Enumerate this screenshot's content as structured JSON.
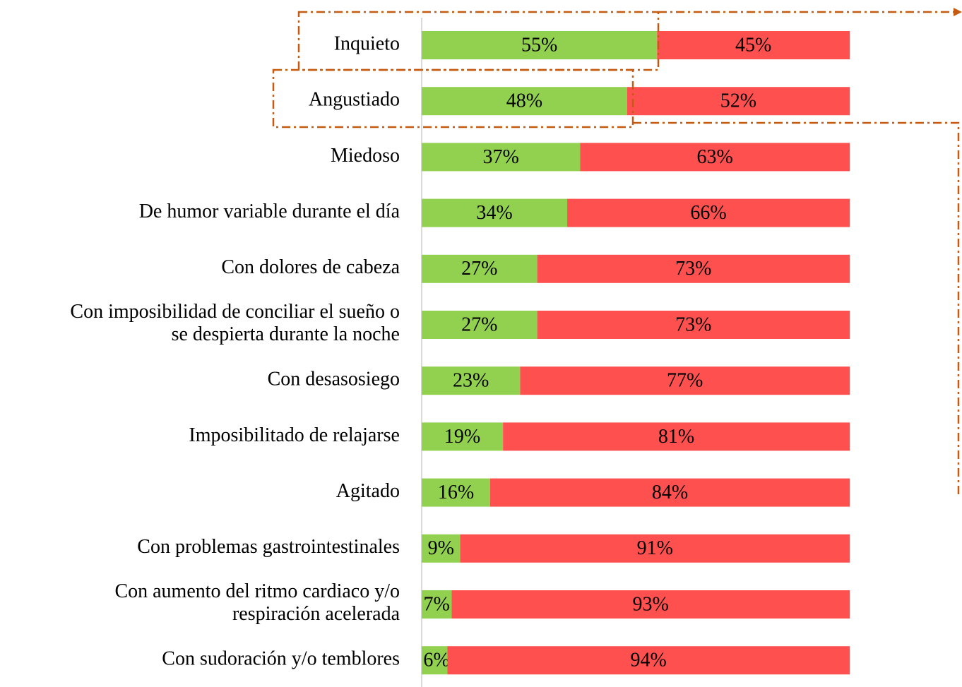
{
  "chart_data": {
    "type": "stacked-bar-horizontal",
    "categories": [
      "Inquieto",
      "Angustiado",
      "Miedoso",
      "De humor variable durante el día",
      "Con dolores de cabeza",
      "Con imposibilidad de conciliar el sueño o\nse despierta durante la noche",
      "Con desasosiego",
      "Imposibilitado de relajarse",
      "Agitado",
      "Con problemas gastrointestinales",
      "Con aumento del ritmo cardiaco y/o\nrespiración acelerada",
      "Con sudoración y/o temblores"
    ],
    "series": [
      {
        "color": "#92d050",
        "values": [
          55,
          48,
          37,
          34,
          27,
          27,
          23,
          19,
          16,
          9,
          7,
          6
        ],
        "value_labels": [
          "55%",
          "48%",
          "37%",
          "34%",
          "27%",
          "27%",
          "23%",
          "19%",
          "16%",
          "9%",
          "7%",
          "6%"
        ]
      },
      {
        "color": "#ff5050",
        "values": [
          45,
          52,
          63,
          66,
          73,
          73,
          77,
          81,
          84,
          91,
          93,
          94
        ],
        "value_labels": [
          "45%",
          "52%",
          "63%",
          "66%",
          "73%",
          "73%",
          "77%",
          "81%",
          "84%",
          "91%",
          "93%",
          "94%"
        ]
      }
    ],
    "xlim": [
      0,
      100
    ]
  }
}
